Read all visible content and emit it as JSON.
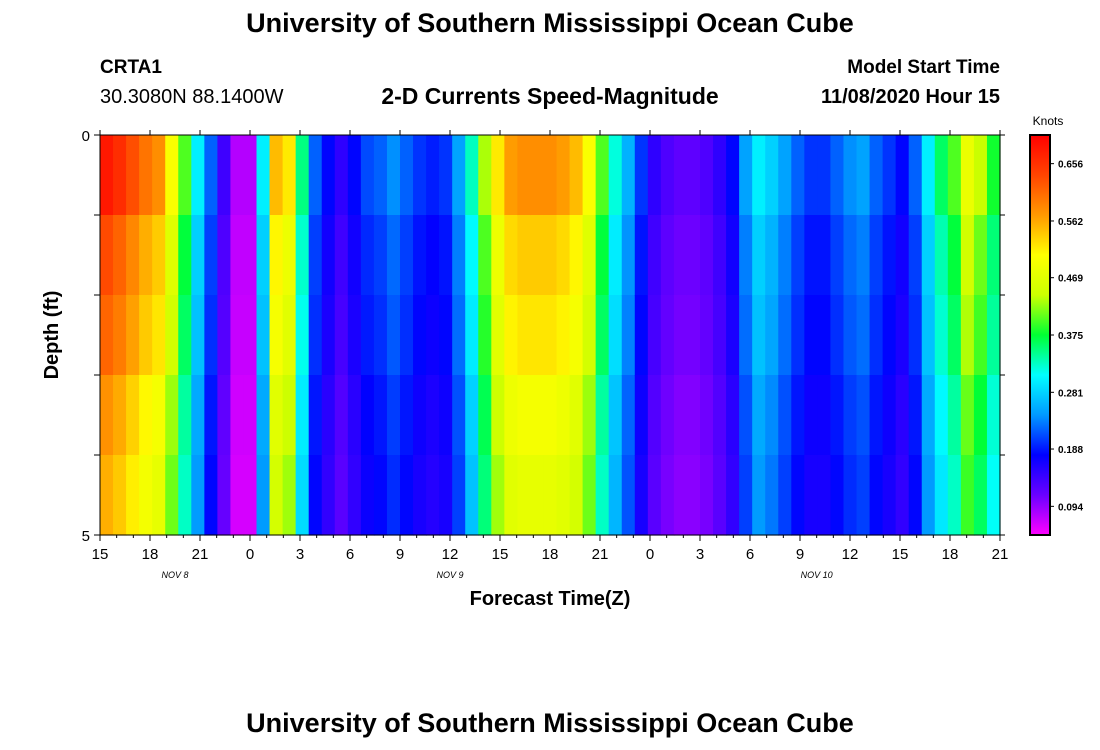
{
  "header": {
    "title": "University of Southern Mississippi Ocean Cube",
    "station_name": "CRTA1",
    "station_coords": "30.3080N 88.1400W",
    "chart_title": "2-D Currents Speed-Magnitude",
    "model_label": "Model Start Time",
    "model_date": "11/08/2020 Hour 15"
  },
  "footer": {
    "title": "University of Southern Mississippi Ocean Cube"
  },
  "chart_data": {
    "type": "heatmap",
    "title": "2-D Currents Speed-Magnitude",
    "xlabel": "Forecast Time(Z)",
    "ylabel": "Depth (ft)",
    "colorbar_label": "Knots",
    "y_ticks": [
      "0",
      "5"
    ],
    "ylim": [
      0,
      5
    ],
    "x_tick_labels": [
      "15",
      "18",
      "21",
      "0",
      "3",
      "6",
      "9",
      "12",
      "15",
      "18",
      "21",
      "0",
      "3",
      "6",
      "9",
      "12",
      "15",
      "18",
      "21"
    ],
    "day_labels": [
      {
        "text": "NOV 8",
        "at_hour": 19.5
      },
      {
        "text": "NOV 9",
        "at_hour": 36
      },
      {
        "text": "NOV 10",
        "at_hour": 58
      }
    ],
    "x_range_hours": [
      15,
      69
    ],
    "colorbar": {
      "min": 0.047,
      "max": 0.703,
      "ticks": [
        "0.656",
        "0.562",
        "0.469",
        "0.375",
        "0.281",
        "0.188",
        "0.094"
      ],
      "colors": [
        "#ff00ff",
        "#6a00ff",
        "#0000ff",
        "#0099ff",
        "#00ffff",
        "#00ff33",
        "#ccff00",
        "#ffff00",
        "#ff9900",
        "#ff4400",
        "#ff0000"
      ]
    },
    "speed_by_hour": [
      0.68,
      0.66,
      0.63,
      0.6,
      0.58,
      0.5,
      0.4,
      0.3,
      0.22,
      0.14,
      0.08,
      0.08,
      0.3,
      0.55,
      0.52,
      0.35,
      0.22,
      0.18,
      0.15,
      0.18,
      0.21,
      0.22,
      0.24,
      0.22,
      0.2,
      0.19,
      0.2,
      0.25,
      0.33,
      0.43,
      0.52,
      0.57,
      0.58,
      0.58,
      0.58,
      0.57,
      0.55,
      0.5,
      0.4,
      0.32,
      0.26,
      0.2,
      0.15,
      0.13,
      0.12,
      0.12,
      0.13,
      0.15,
      0.18,
      0.25,
      0.3,
      0.28,
      0.25,
      0.22,
      0.2,
      0.2,
      0.22,
      0.24,
      0.25,
      0.22,
      0.2,
      0.18,
      0.22,
      0.3,
      0.36,
      0.4,
      0.48,
      0.44,
      0.38
    ],
    "depth_factors": [
      1.0,
      0.93,
      0.9,
      0.85,
      0.82
    ]
  }
}
